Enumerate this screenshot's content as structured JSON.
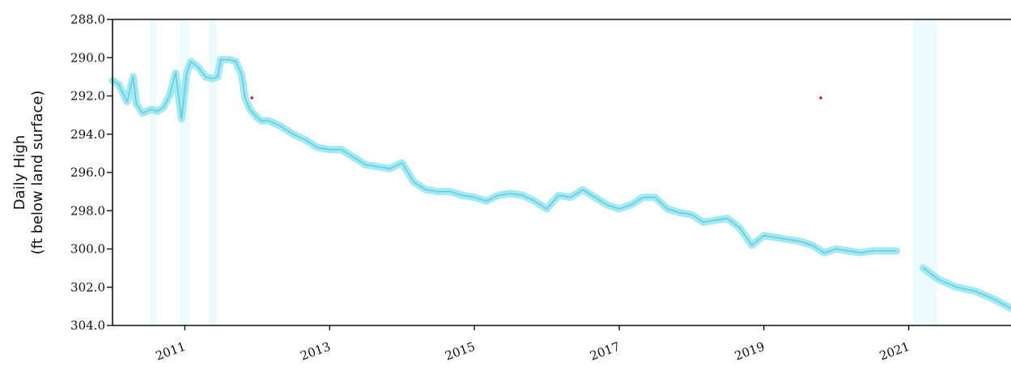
{
  "chart_data": {
    "type": "line",
    "ylabel": "Daily High\n(ft below land surface)",
    "ylim": [
      288.0,
      304.0
    ],
    "y_inverted": true,
    "yticks": [
      "288.0",
      "290.0",
      "292.0",
      "294.0",
      "296.0",
      "298.0",
      "300.0",
      "302.0",
      "304.0"
    ],
    "xlim": [
      "2010-01-01",
      "2022-06-01"
    ],
    "xticks": [
      "2011",
      "2013",
      "2015",
      "2017",
      "2019",
      "2021"
    ],
    "grid": false,
    "colors": {
      "line": "#7fe4f2",
      "line_dark": "#5bb8c8",
      "outlier": "#e0103a",
      "axis": "#111111"
    },
    "series": [
      {
        "x": [
          "2010-01-01",
          "2010-02-01",
          "2010-03-15",
          "2010-04-15",
          "2010-05-01",
          "2010-06-01",
          "2010-07-15",
          "2010-08-15",
          "2010-09-15",
          "2010-10-15",
          "2010-11-15",
          "2010-12-15",
          "2011-01-10",
          "2011-02-01",
          "2011-03-10",
          "2011-04-15",
          "2011-05-20",
          "2011-06-15",
          "2011-07-01",
          "2011-08-15",
          "2011-09-15",
          "2011-10-15",
          "2011-11-01",
          "2011-11-25",
          "2011-12-20",
          "2012-01-20",
          "2012-03-01",
          "2012-05-01",
          "2012-07-01",
          "2012-09-01",
          "2012-11-01",
          "2013-01-01",
          "2013-03-01",
          "2013-05-01",
          "2013-07-01",
          "2013-09-01",
          "2013-11-01",
          "2014-01-01",
          "2014-03-01",
          "2014-05-01",
          "2014-07-01",
          "2014-09-01",
          "2014-11-01",
          "2015-01-01",
          "2015-03-01",
          "2015-05-01",
          "2015-07-01",
          "2015-09-01",
          "2015-11-01",
          "2016-01-01",
          "2016-03-01",
          "2016-05-01",
          "2016-07-01",
          "2016-09-01",
          "2016-11-01",
          "2017-01-01",
          "2017-03-01",
          "2017-05-01",
          "2017-07-01",
          "2017-09-01",
          "2017-11-01",
          "2018-01-01",
          "2018-03-01",
          "2018-05-01",
          "2018-07-01",
          "2018-09-01",
          "2018-11-01",
          "2019-01-01",
          "2019-03-01",
          "2019-05-01",
          "2019-07-01",
          "2019-09-01",
          "2019-11-01",
          "2020-01-01",
          "2020-03-01",
          "2020-05-01",
          "2020-07-01",
          "2020-09-01",
          "2020-11-01"
        ],
        "y": [
          291.2,
          291.4,
          292.3,
          291.0,
          292.4,
          292.9,
          292.7,
          292.8,
          292.6,
          292.0,
          290.8,
          293.2,
          290.8,
          290.2,
          290.5,
          291.0,
          291.1,
          291.0,
          290.1,
          290.1,
          290.2,
          290.9,
          292.1,
          292.7,
          293.0,
          293.3,
          293.3,
          293.6,
          294.0,
          294.3,
          294.7,
          294.8,
          294.8,
          295.2,
          295.6,
          295.7,
          295.8,
          295.5,
          296.5,
          296.9,
          297.0,
          297.0,
          297.2,
          297.3,
          297.5,
          297.2,
          297.1,
          297.2,
          297.5,
          297.9,
          297.2,
          297.3,
          296.9,
          297.3,
          297.7,
          297.9,
          297.7,
          297.3,
          297.3,
          297.9,
          298.1,
          298.2,
          298.6,
          298.5,
          298.4,
          298.9,
          299.8,
          299.3,
          299.4,
          299.5,
          299.6,
          299.8,
          300.2,
          300.0,
          300.1,
          300.2,
          300.1,
          300.1,
          300.1
        ]
      },
      {
        "x": [
          "2021-03-15",
          "2021-06-01",
          "2021-09-01",
          "2021-12-01",
          "2022-03-01",
          "2022-06-01"
        ],
        "y": [
          301.0,
          301.6,
          302.0,
          302.2,
          302.6,
          303.1
        ]
      }
    ],
    "outliers": [
      {
        "x": "2011-12-05",
        "y": 292.1
      },
      {
        "x": "2019-10-15",
        "y": 292.1
      }
    ]
  }
}
